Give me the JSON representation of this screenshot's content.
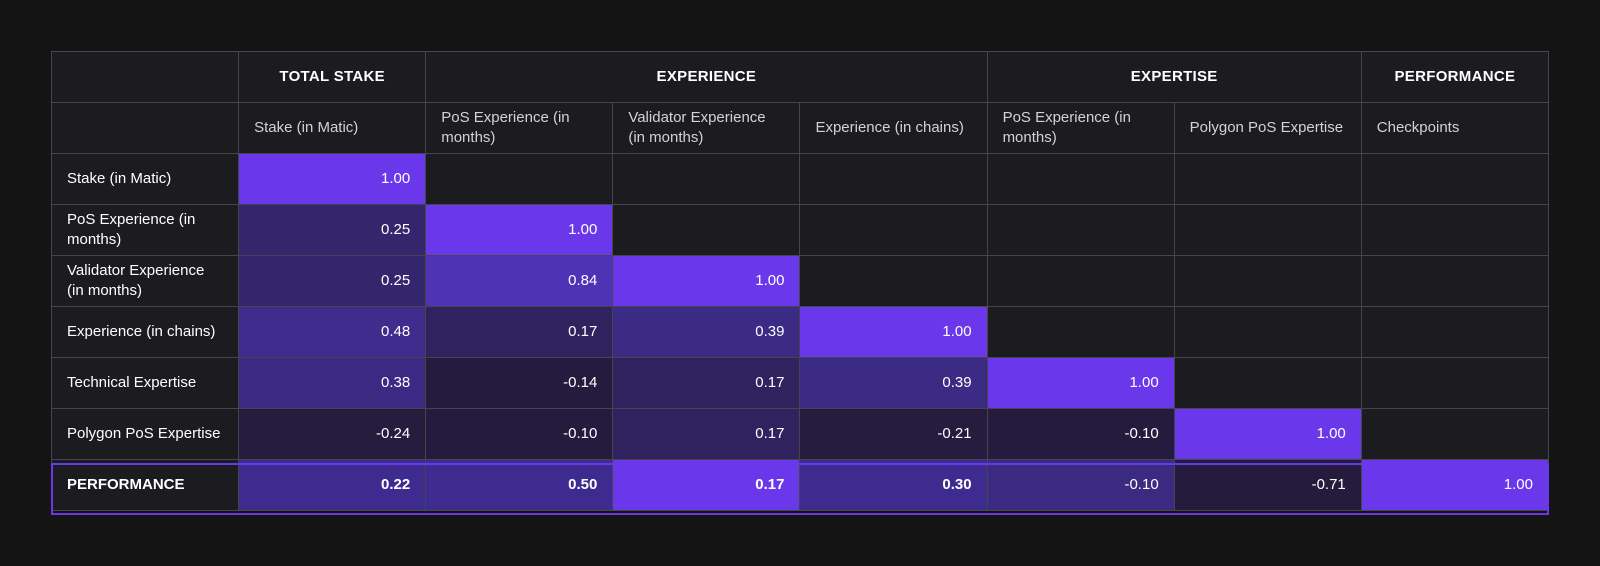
{
  "chart_data": {
    "type": "table",
    "title": "",
    "group_headers": [
      {
        "label": "",
        "span": 1
      },
      {
        "label": "TOTAL STAKE",
        "span": 1
      },
      {
        "label": "EXPERIENCE",
        "span": 3
      },
      {
        "label": "EXPERTISE",
        "span": 2
      },
      {
        "label": "PERFORMANCE",
        "span": 1
      }
    ],
    "columns": [
      "Stake (in Matic)",
      "PoS Experience  (in months)",
      "Validator Experience (in months)",
      "Experience (in chains)",
      "PoS Experience  (in months)",
      "Polygon PoS Expertise",
      "Checkpoints"
    ],
    "rows": [
      {
        "label": "Stake (in Matic)",
        "values": [
          "1.00",
          null,
          null,
          null,
          null,
          null,
          null
        ]
      },
      {
        "label": "PoS Experience (in months)",
        "values": [
          "0.25",
          "1.00",
          null,
          null,
          null,
          null,
          null
        ]
      },
      {
        "label": "Validator Experience (in months)",
        "values": [
          "0.25",
          "0.84",
          "1.00",
          null,
          null,
          null,
          null
        ]
      },
      {
        "label": "Experience (in chains)",
        "values": [
          "0.48",
          "0.17",
          "0.39",
          "1.00",
          null,
          null,
          null
        ]
      },
      {
        "label": "Technical Expertise",
        "values": [
          "0.38",
          "-0.14",
          "0.17",
          "0.39",
          "1.00",
          null,
          null
        ]
      },
      {
        "label": "Polygon PoS Expertise",
        "values": [
          "-0.24",
          "-0.10",
          "0.17",
          "-0.21",
          "-0.10",
          "1.00",
          null
        ]
      },
      {
        "label": "PERFORMANCE",
        "values": [
          "0.22",
          "0.50",
          "0.17",
          "0.30",
          "-0.10",
          "-0.71",
          "1.00"
        ],
        "highlight": true
      }
    ],
    "color_scale": {
      "empty": "#1c1b20",
      "low": "#241b3d",
      "mid": "#3a2a80",
      "high": "#6a38ea"
    }
  }
}
